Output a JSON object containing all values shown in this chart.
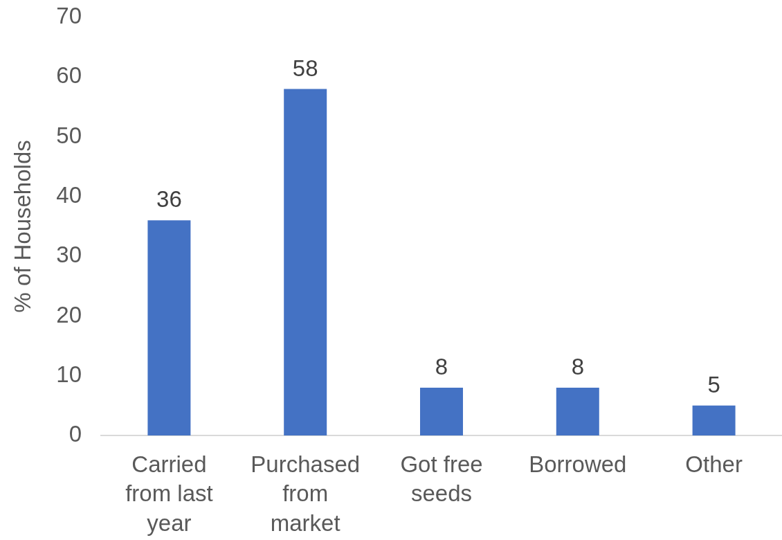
{
  "chart_data": {
    "type": "bar",
    "ylabel": "% of Households",
    "categories": [
      "Carried from last year",
      "Purchased from market",
      "Got free seeds",
      "Borrowed",
      "Other"
    ],
    "values": [
      36,
      58,
      8,
      8,
      5
    ],
    "color": "#4472c4",
    "ylim": [
      0,
      70
    ],
    "yticks": [
      0,
      10,
      20,
      30,
      40,
      50,
      60,
      70
    ],
    "grid": false,
    "legend": false,
    "data_labels": true
  }
}
